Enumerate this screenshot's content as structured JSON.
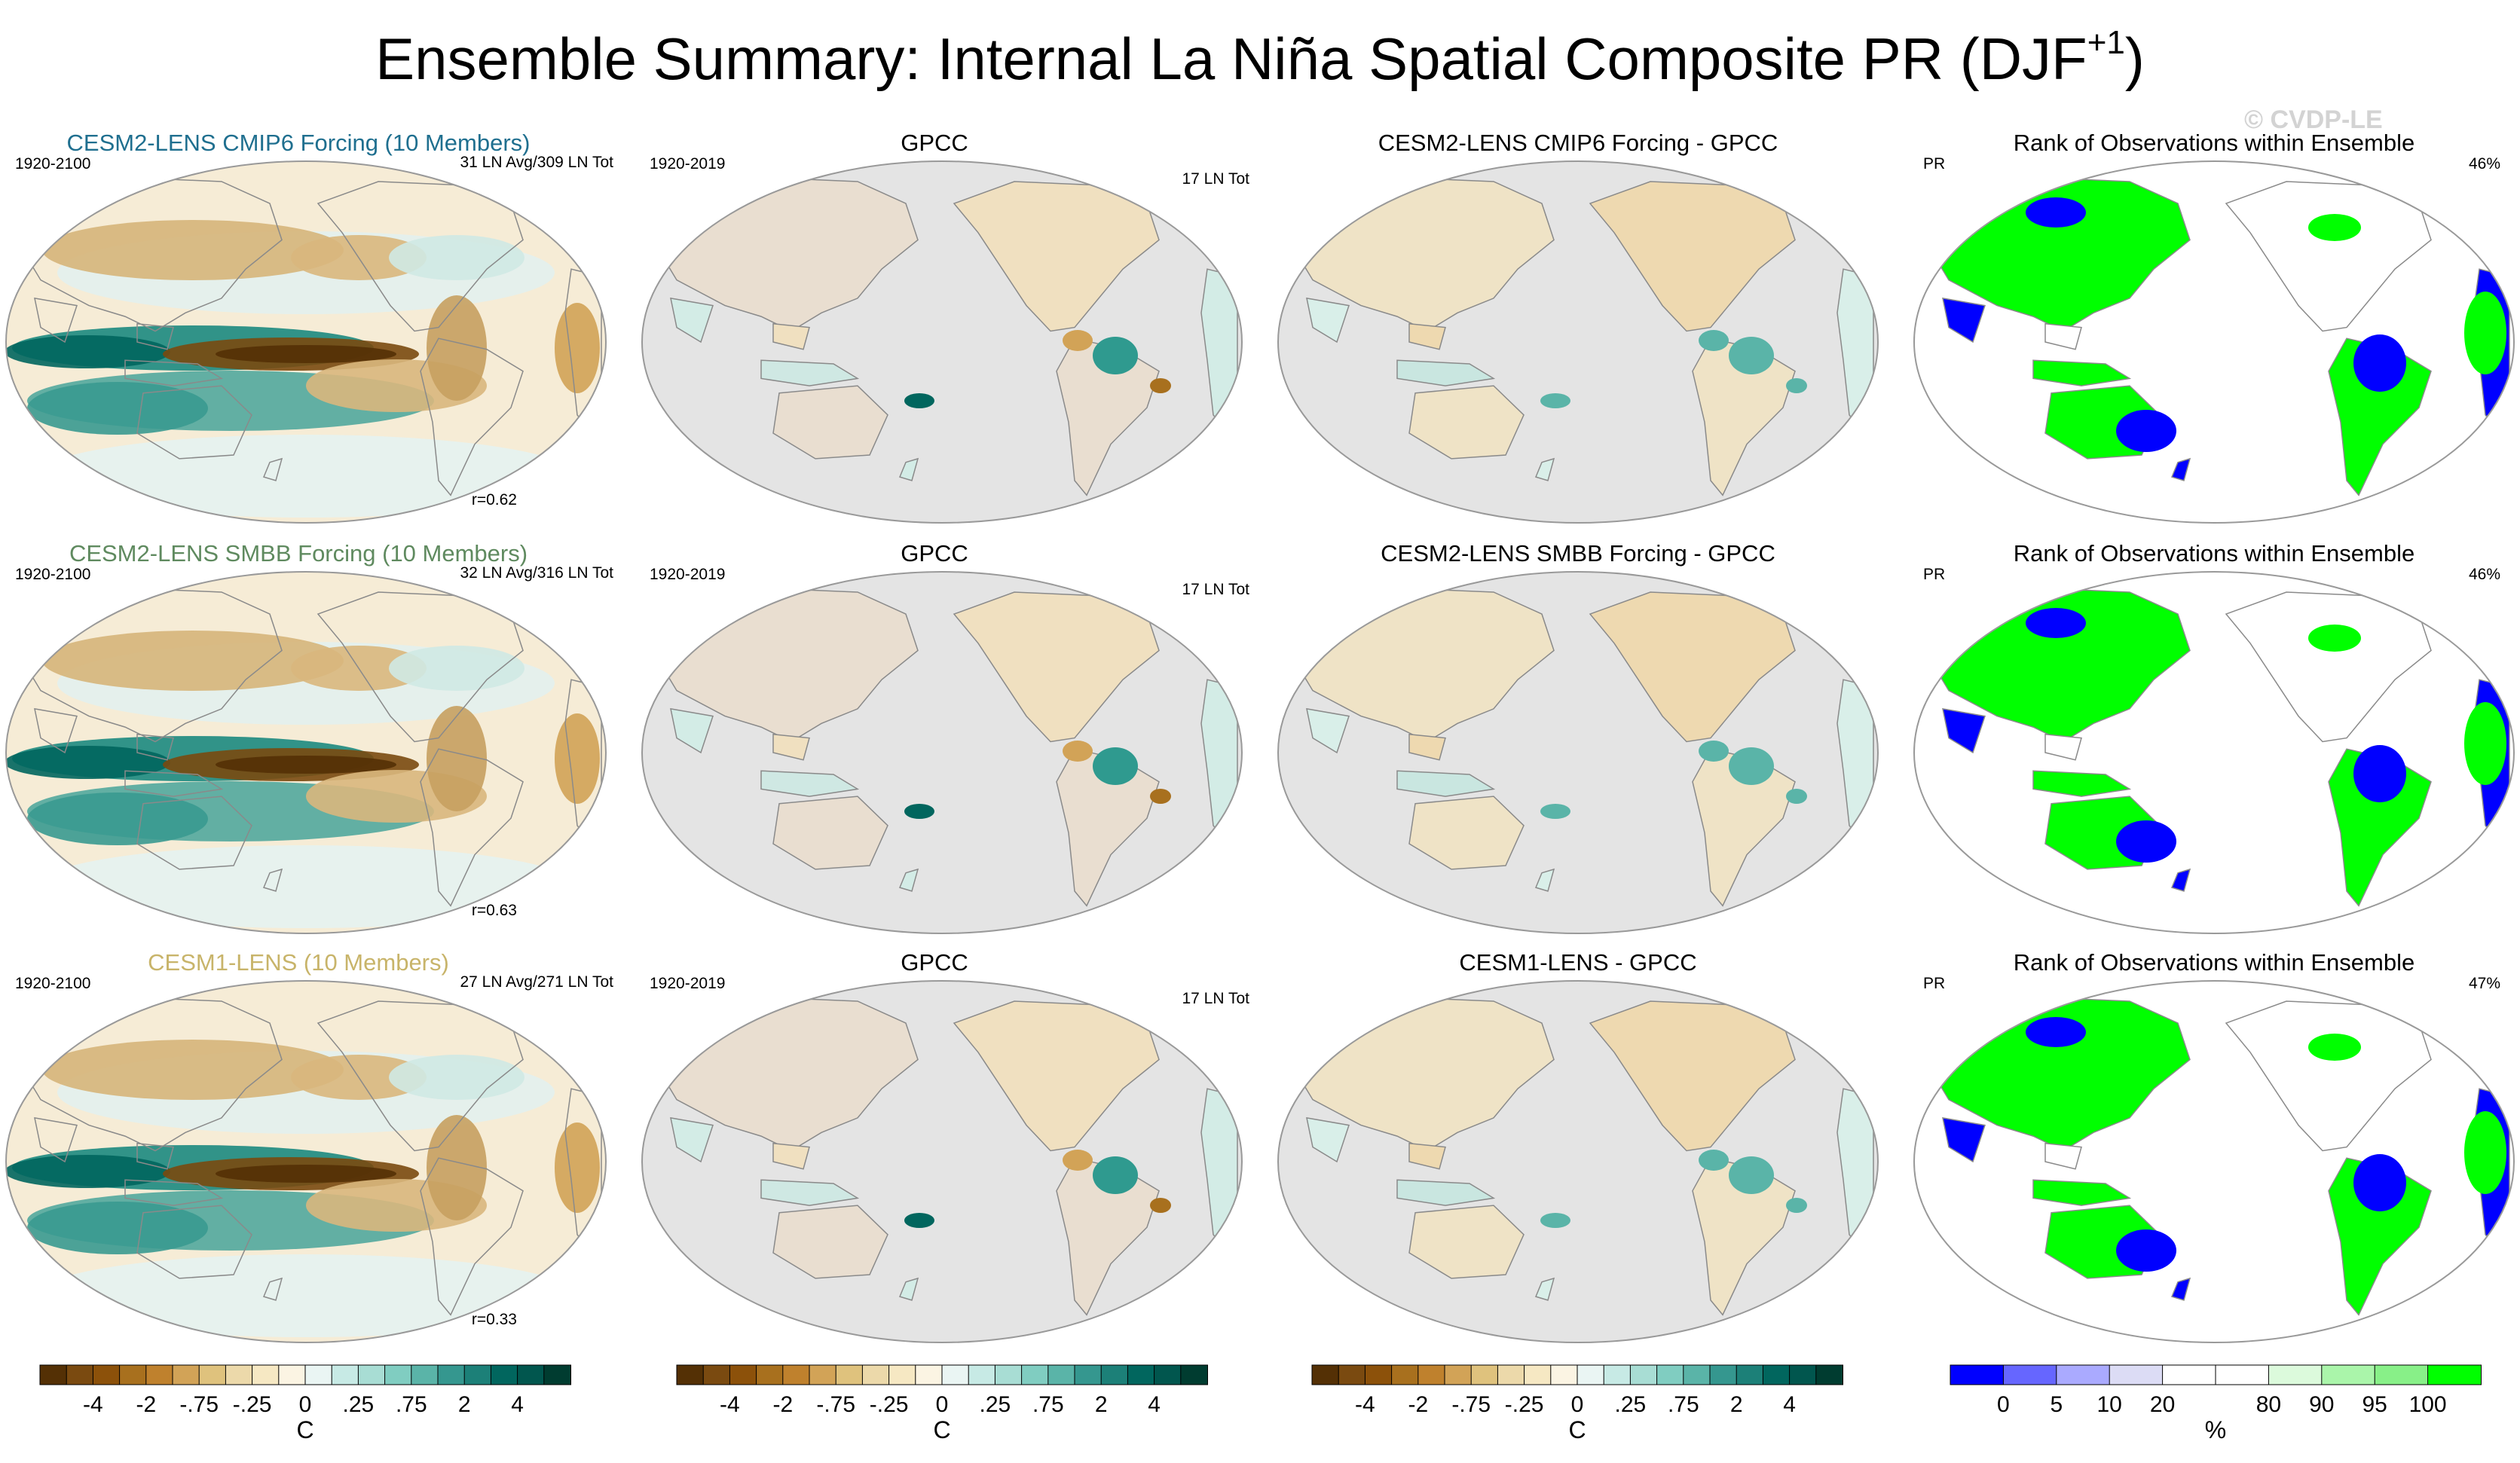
{
  "title": {
    "main": "Ensemble Summary: Internal La Niña Spatial Composite PR (DJF",
    "superscript": "+1",
    "close": ")"
  },
  "watermark": "© CVDP-LE",
  "rows": [
    {
      "model": {
        "title": "CESM2-LENS CMIP6 Forcing (10 Members)",
        "title_color": "#1f6f8f",
        "period": "1920-2100",
        "count": "31 LN Avg/309 LN Tot",
        "corr": "r=0.62"
      },
      "obs": {
        "title": "GPCC",
        "period": "1920-2019",
        "count": "17 LN Tot"
      },
      "diff": {
        "title": "CESM2-LENS CMIP6 Forcing - GPCC"
      },
      "rank": {
        "title": "Rank of Observations within Ensemble",
        "var": "PR",
        "pct": "46%"
      }
    },
    {
      "model": {
        "title": "CESM2-LENS SMBB Forcing (10 Members)",
        "title_color": "#5f8a5f",
        "period": "1920-2100",
        "count": "32 LN Avg/316 LN Tot",
        "corr": "r=0.63"
      },
      "obs": {
        "title": "GPCC",
        "period": "1920-2019",
        "count": "17 LN Tot"
      },
      "diff": {
        "title": "CESM2-LENS SMBB Forcing - GPCC"
      },
      "rank": {
        "title": "Rank of Observations within Ensemble",
        "var": "PR",
        "pct": "46%"
      }
    },
    {
      "model": {
        "title": "CESM1-LENS (10 Members)",
        "title_color": "#c8b46a",
        "period": "1920-2100",
        "count": "27 LN Avg/271 LN Tot",
        "corr": "r=0.33"
      },
      "obs": {
        "title": "GPCC",
        "period": "1920-2019",
        "count": "17 LN Tot"
      },
      "diff": {
        "title": "CESM1-LENS - GPCC"
      },
      "rank": {
        "title": "Rank of Observations within Ensemble",
        "var": "PR",
        "pct": "47%"
      }
    }
  ],
  "colorbars": {
    "diverging": {
      "colors": [
        "#543005",
        "#7a4a10",
        "#8c510a",
        "#a8701e",
        "#bf812d",
        "#d2a357",
        "#dfc27d",
        "#ecd9aa",
        "#f6e8c3",
        "#fbf4e3",
        "#eaf5f3",
        "#c7eae5",
        "#a8ddd4",
        "#80cdc1",
        "#5ab4a8",
        "#35978f",
        "#1c8078",
        "#01665e",
        "#01564e",
        "#003c30"
      ],
      "ticks": [
        "-4",
        "-2",
        "-.75",
        "-.25",
        "0",
        ".25",
        ".75",
        "2",
        "4"
      ],
      "unit": "C"
    },
    "rank": {
      "colors": [
        "#0000ff",
        "#6666ff",
        "#aaaaff",
        "#dcdcf5",
        "#ffffff",
        "#ffffff",
        "#dcfadc",
        "#aaf5aa",
        "#88f088",
        "#00ff00"
      ],
      "ticks": [
        "0",
        "5",
        "10",
        "20",
        "80",
        "90",
        "95",
        "100"
      ],
      "unit": "%"
    }
  }
}
